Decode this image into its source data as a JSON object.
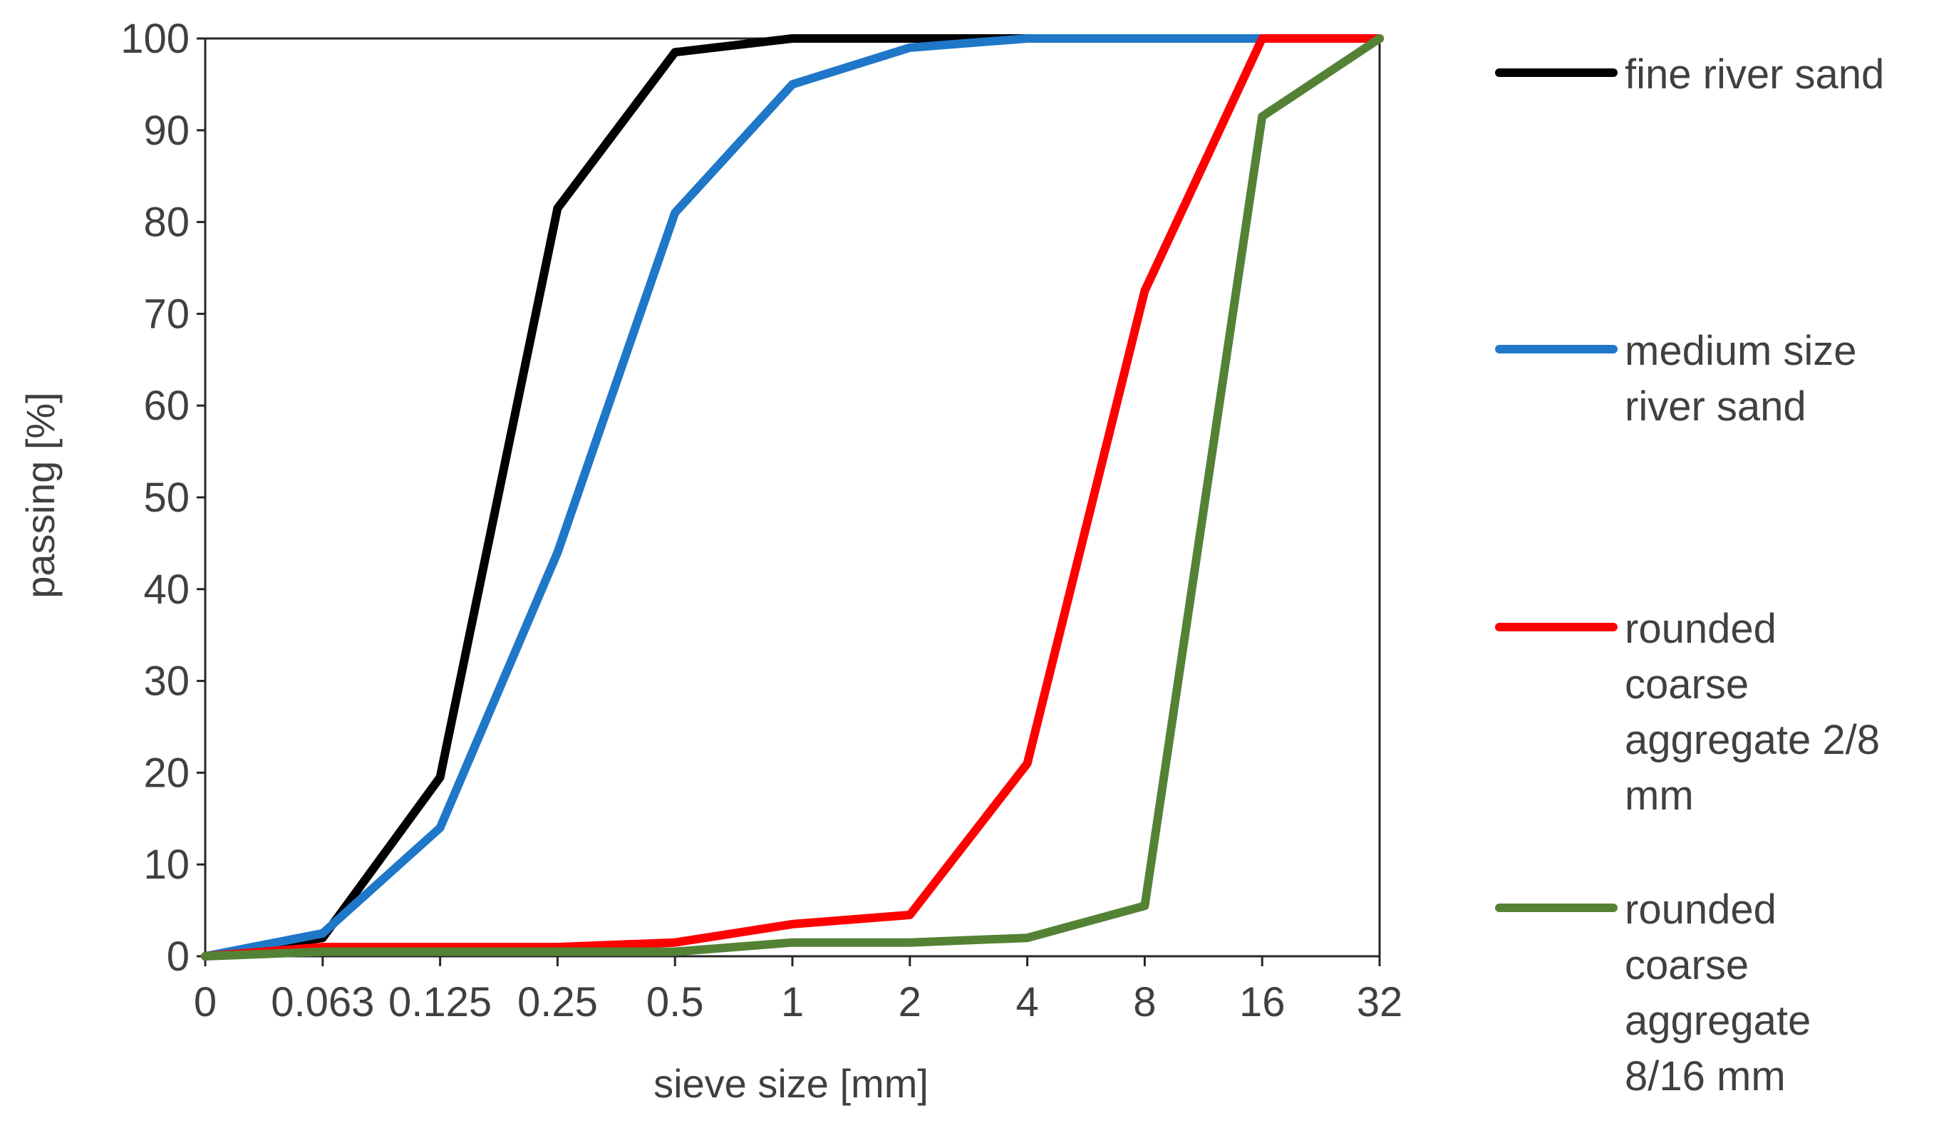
{
  "chart_data": {
    "type": "line",
    "title": "",
    "xlabel": "sieve size [mm]",
    "ylabel": "passing [%]",
    "x_scale": "categorical (log2 sieve sizes)",
    "categories": [
      "0",
      "0.063",
      "0.125",
      "0.25",
      "0.5",
      "1",
      "2",
      "4",
      "8",
      "16",
      "32"
    ],
    "ylim": [
      0,
      100
    ],
    "yticks": [
      "0",
      "10",
      "20",
      "30",
      "40",
      "50",
      "60",
      "70",
      "80",
      "90",
      "100"
    ],
    "grid": false,
    "legend_position": "right",
    "series": [
      {
        "name": "fine river sand",
        "legend_lines": [
          "fine river sand"
        ],
        "color": "#000000",
        "values": [
          0,
          2,
          19.5,
          81.5,
          98.5,
          100,
          100,
          100,
          100,
          100,
          100
        ]
      },
      {
        "name": "medium size river sand",
        "legend_lines": [
          "medium size",
          "river sand"
        ],
        "color": "#1f77c8",
        "values": [
          0,
          2.5,
          14,
          44,
          81,
          95,
          99,
          100,
          100,
          100,
          100
        ]
      },
      {
        "name": "rounded coarse aggregate 2/8 mm",
        "legend_lines": [
          "rounded",
          "coarse",
          "aggregate 2/8",
          "mm"
        ],
        "color": "#ff0000",
        "values": [
          0,
          1,
          1,
          1,
          1.5,
          3.5,
          4.5,
          21,
          72.5,
          100,
          100
        ]
      },
      {
        "name": "rounded coarse aggregate 8/16 mm",
        "legend_lines": [
          "rounded",
          "coarse",
          "aggregate",
          "8/16 mm"
        ],
        "color": "#548235",
        "values": [
          0,
          0.5,
          0.5,
          0.5,
          0.5,
          1.5,
          1.5,
          2,
          5.5,
          91.5,
          100
        ]
      }
    ]
  }
}
